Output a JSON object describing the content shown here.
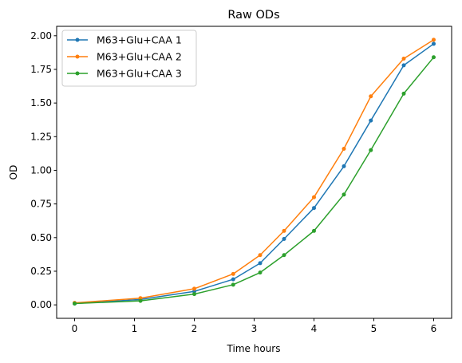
{
  "chart_data": {
    "type": "line",
    "title": "Raw ODs",
    "xlabel": "Time hours",
    "ylabel": "OD",
    "xlim": [
      -0.3,
      6.3
    ],
    "ylim": [
      -0.1,
      2.07
    ],
    "xticks": [
      0,
      1,
      2,
      3,
      4,
      5,
      6
    ],
    "xtick_labels": [
      "0",
      "1",
      "2",
      "3",
      "4",
      "5",
      "6"
    ],
    "yticks": [
      0,
      0.25,
      0.5,
      0.75,
      1.0,
      1.25,
      1.5,
      1.75,
      2.0
    ],
    "ytick_labels": [
      "0.00",
      "0.25",
      "0.50",
      "0.75",
      "1.00",
      "1.25",
      "1.50",
      "1.75",
      "2.00"
    ],
    "grid": false,
    "legend_position": "top-left",
    "series": [
      {
        "name": "M63+Glu+CAA 1",
        "color": "#1f77b4",
        "x": [
          0,
          1.1,
          2,
          2.65,
          3.1,
          3.5,
          4,
          4.5,
          4.95,
          5.5,
          6.0
        ],
        "y": [
          0.01,
          0.04,
          0.1,
          0.19,
          0.31,
          0.49,
          0.72,
          1.03,
          1.37,
          1.78,
          1.94
        ]
      },
      {
        "name": "M63+Glu+CAA 2",
        "color": "#ff7f0e",
        "x": [
          0,
          1.1,
          2,
          2.65,
          3.1,
          3.5,
          4,
          4.5,
          4.95,
          5.5,
          6.0
        ],
        "y": [
          0.015,
          0.05,
          0.12,
          0.23,
          0.37,
          0.55,
          0.8,
          1.16,
          1.55,
          1.83,
          1.97
        ]
      },
      {
        "name": "M63+Glu+CAA 3",
        "color": "#2ca02c",
        "x": [
          0,
          1.1,
          2,
          2.65,
          3.1,
          3.5,
          4,
          4.5,
          4.95,
          5.5,
          6.0
        ],
        "y": [
          0.01,
          0.03,
          0.08,
          0.15,
          0.24,
          0.37,
          0.55,
          0.82,
          1.15,
          1.57,
          1.84
        ]
      }
    ]
  }
}
